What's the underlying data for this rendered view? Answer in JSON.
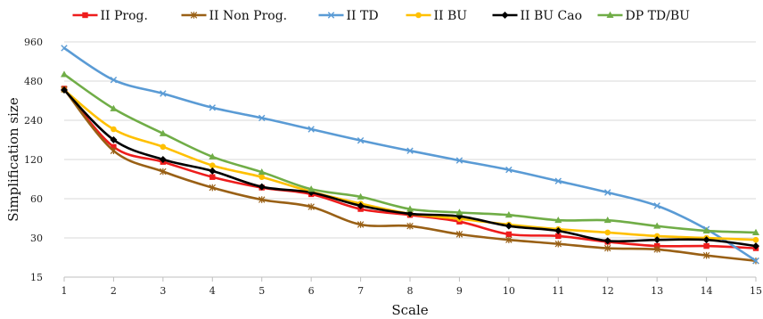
{
  "chart_data": {
    "type": "line",
    "title": "",
    "xlabel": "Scale",
    "ylabel": "Simplification size",
    "x": [
      1,
      2,
      3,
      4,
      5,
      6,
      7,
      8,
      9,
      10,
      11,
      12,
      13,
      14,
      15
    ],
    "xticks": [
      "1",
      "2",
      "3",
      "4",
      "5",
      "6",
      "7",
      "8",
      "9",
      "10",
      "11",
      "12",
      "13",
      "14",
      "15"
    ],
    "yscale": "log2",
    "ylim": [
      15,
      960
    ],
    "yticks": [
      15,
      30,
      60,
      120,
      240,
      480,
      960
    ],
    "ytick_labels": [
      "15",
      "30",
      "60",
      "120",
      "240",
      "480",
      "960"
    ],
    "grid": "horizontal",
    "legend_position": "top",
    "series": [
      {
        "name": "II Prog.",
        "color": "#ee1c1c",
        "marker": "square",
        "values": [
          420,
          150,
          115,
          88,
          73,
          65,
          50,
          45,
          40,
          32,
          31,
          28,
          26,
          26,
          25
        ]
      },
      {
        "name": "II Non Prog.",
        "color": "#996015",
        "marker": "star",
        "values": [
          415,
          140,
          97,
          73,
          59,
          52,
          38,
          37,
          32,
          29,
          27,
          25,
          24.5,
          22,
          20
        ]
      },
      {
        "name": "II TD",
        "color": "#5a9bd5",
        "marker": "x",
        "values": [
          860,
          490,
          385,
          300,
          250,
          205,
          168,
          140,
          118,
          100,
          82,
          67,
          53,
          35,
          20
        ]
      },
      {
        "name": "II BU",
        "color": "#ffc000",
        "marker": "circle",
        "values": [
          410,
          205,
          150,
          108,
          88,
          68,
          55,
          46,
          42,
          38,
          35,
          33,
          31,
          30,
          29
        ]
      },
      {
        "name": "II BU Cao",
        "color": "#000000",
        "marker": "diamond",
        "values": [
          410,
          170,
          120,
          98,
          74,
          67,
          53,
          46,
          44,
          37,
          34,
          28.5,
          29,
          29,
          26
        ]
      },
      {
        "name": "DP TD/BU",
        "color": "#70ad47",
        "marker": "triangle",
        "values": [
          540,
          295,
          190,
          126,
          96,
          71,
          62,
          50,
          47,
          45,
          41,
          41,
          37,
          34,
          33
        ]
      }
    ]
  }
}
